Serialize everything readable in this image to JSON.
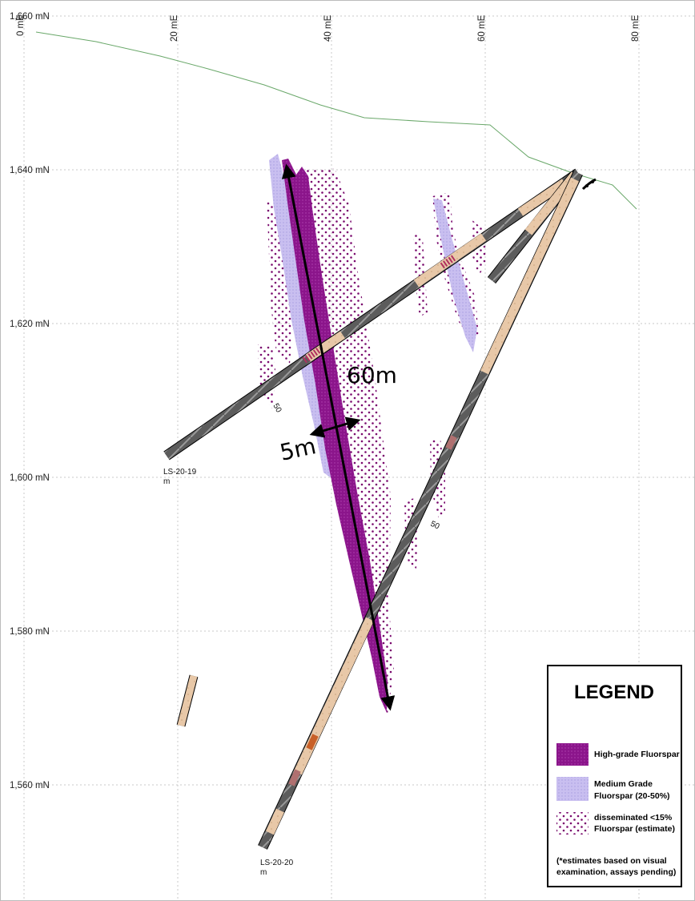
{
  "grid": {
    "northings": [
      "1,660 mN",
      "1,640 mN",
      "1,620 mN",
      "1,600 mN",
      "1,580 mN",
      "1,560 mN"
    ],
    "eastings": [
      "0 mE",
      "20 mE",
      "40 mE",
      "60 mE",
      "80 mE"
    ]
  },
  "drillholes": [
    {
      "id": "LS-20-19",
      "unit": "m",
      "tick_label": "50"
    },
    {
      "id": "LS-20-20",
      "unit": "m",
      "tick_label": "50"
    }
  ],
  "annotations": {
    "length_label": "60m",
    "width_label": "5m"
  },
  "legend": {
    "title": "LEGEND",
    "items": [
      {
        "lines": [
          "High-grade Fluorspar"
        ],
        "color": "#8b158b"
      },
      {
        "lines": [
          "Medium Grade",
          "Fluorspar (20-50%)"
        ],
        "color": "#c9bff0"
      },
      {
        "lines": [
          "disseminated <15%",
          "Fluorspar (estimate)"
        ],
        "color": "#7a0a6e"
      }
    ],
    "note": [
      "(*estimates based on visual",
      "examination, assays pending)"
    ]
  },
  "colors": {
    "topography": "#6aa86a",
    "high_grade": "#8b158b",
    "medium_grade": "#c9bff0",
    "disseminated": "#7a0a6e",
    "core_dark": "#555555",
    "core_light": "#e8c8a8"
  }
}
